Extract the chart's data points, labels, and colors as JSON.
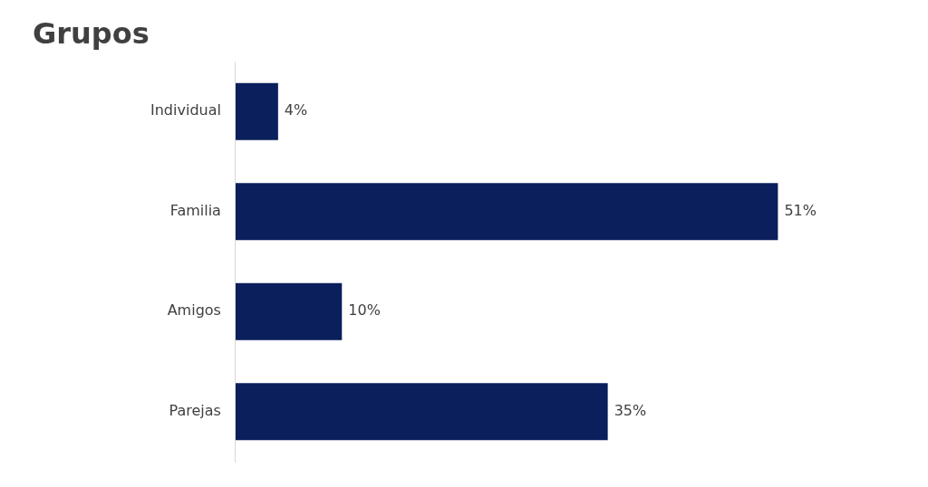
{
  "chart_data": {
    "type": "bar",
    "title": "Grupos",
    "orientation": "horizontal",
    "categories": [
      "Individual",
      "Familia",
      "Amigos",
      "Parejas"
    ],
    "values": [
      4,
      51,
      10,
      35
    ],
    "value_labels": [
      "4%",
      "51%",
      "10%",
      "35%"
    ],
    "color": "#0b1f5c",
    "tick_labels": "y"
  }
}
